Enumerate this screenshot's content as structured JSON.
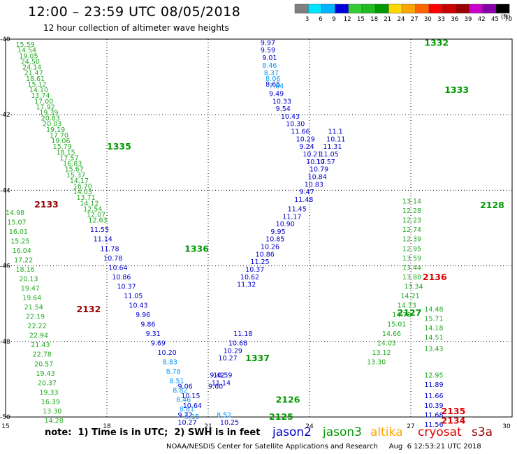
{
  "header": {
    "title": "12:00 – 23:59 UTC 08/05/2018",
    "subtitle": "12 hour collection of altimeter wave heights"
  },
  "color_scale": {
    "unit_label": "(ft)",
    "ticks": [
      "3",
      "6",
      "9",
      "12",
      "15",
      "18",
      "21",
      "24",
      "27",
      "30",
      "33",
      "36",
      "39",
      "42",
      "45",
      "70"
    ],
    "colors": [
      "#7f7f7f",
      "#00e5ff",
      "#00b2ff",
      "#0000dd",
      "#33cc33",
      "#22b922",
      "#009900",
      "#ffd700",
      "#ffa500",
      "#ff6600",
      "#ff0000",
      "#cc0000",
      "#990000",
      "#cc00cc",
      "#8800aa",
      "#000000"
    ]
  },
  "footer": {
    "note": "note:  1) Time is in UTC;  2) SWH is in feet",
    "legend": [
      {
        "label": "jason2",
        "color": "#0000cc"
      },
      {
        "label": "jason3",
        "color": "#009900"
      },
      {
        "label": "altika",
        "color": "#ffa500"
      },
      {
        "label": "cryosat",
        "color": "#dd0000"
      },
      {
        "label": "s3a",
        "color": "#990000"
      }
    ],
    "credit": "NOAA/NESDIS Center for Satellite Applications and Research     Aug  6 12:53:21 UTC 2018"
  },
  "chart_data": {
    "type": "scatter",
    "xlabel": "",
    "ylabel": "",
    "xlim": [
      15,
      30
    ],
    "ylim": [
      -50,
      -40
    ],
    "x_ticks": [
      15,
      18,
      21,
      24,
      27,
      30
    ],
    "y_ticks": [
      -40,
      -42,
      -44,
      -46,
      -48,
      -50
    ],
    "grid": true,
    "series": [
      {
        "name": "jason3",
        "color": "#22aa22",
        "points": [
          {
            "x": 15.3,
            "y": -40.15,
            "v": "15.59"
          },
          {
            "x": 15.35,
            "y": -40.3,
            "v": "14.54"
          },
          {
            "x": 15.4,
            "y": -40.45,
            "v": "19.05"
          },
          {
            "x": 15.45,
            "y": -40.6,
            "v": "24.50"
          },
          {
            "x": 15.5,
            "y": -40.75,
            "v": "24.14"
          },
          {
            "x": 15.55,
            "y": -40.9,
            "v": "21.47"
          },
          {
            "x": 15.6,
            "y": -41.05,
            "v": "18.61"
          },
          {
            "x": 15.65,
            "y": -41.2,
            "v": "15.12"
          },
          {
            "x": 15.7,
            "y": -41.35,
            "v": "14.10"
          },
          {
            "x": 15.75,
            "y": -41.5,
            "v": "13.74"
          },
          {
            "x": 15.85,
            "y": -41.65,
            "v": "17.00"
          },
          {
            "x": 15.9,
            "y": -41.8,
            "v": "17.92"
          },
          {
            "x": 16.0,
            "y": -41.95,
            "v": "19.39"
          },
          {
            "x": 16.05,
            "y": -42.1,
            "v": "20.83"
          },
          {
            "x": 16.1,
            "y": -42.25,
            "v": "20.03"
          },
          {
            "x": 16.2,
            "y": -42.4,
            "v": "19.19"
          },
          {
            "x": 16.3,
            "y": -42.55,
            "v": "17.70"
          },
          {
            "x": 16.35,
            "y": -42.7,
            "v": "19.06"
          },
          {
            "x": 16.4,
            "y": -42.85,
            "v": "15.79"
          },
          {
            "x": 16.5,
            "y": -43.0,
            "v": "18.15"
          },
          {
            "x": 16.6,
            "y": -43.15,
            "v": "17.57"
          },
          {
            "x": 16.7,
            "y": -43.3,
            "v": "16.83"
          },
          {
            "x": 16.75,
            "y": -43.45,
            "v": "15.67"
          },
          {
            "x": 16.8,
            "y": -43.6,
            "v": "15.37"
          },
          {
            "x": 16.9,
            "y": -43.75,
            "v": "14.17"
          },
          {
            "x": 17.0,
            "y": -43.9,
            "v": "16.70"
          },
          {
            "x": 17.0,
            "y": -44.05,
            "v": "14.03"
          },
          {
            "x": 17.1,
            "y": -44.2,
            "v": "13.71"
          },
          {
            "x": 17.2,
            "y": -44.35,
            "v": "14.12"
          },
          {
            "x": 17.3,
            "y": -44.5,
            "v": "12.54"
          },
          {
            "x": 17.4,
            "y": -44.65,
            "v": "12.07"
          },
          {
            "x": 17.45,
            "y": -44.8,
            "v": "12.63"
          },
          {
            "x": 14.9,
            "y": -44.37,
            "v": "14.86"
          },
          {
            "x": 15.0,
            "y": -44.6,
            "v": "14.98"
          },
          {
            "x": 15.05,
            "y": -44.85,
            "v": "15.07"
          },
          {
            "x": 15.1,
            "y": -45.1,
            "v": "16.01"
          },
          {
            "x": 15.15,
            "y": -45.35,
            "v": "15.25"
          },
          {
            "x": 15.2,
            "y": -45.6,
            "v": "16.04"
          },
          {
            "x": 15.25,
            "y": -45.85,
            "v": "17.22"
          },
          {
            "x": 15.3,
            "y": -46.1,
            "v": "18.16"
          },
          {
            "x": 15.4,
            "y": -46.35,
            "v": "20.13"
          },
          {
            "x": 15.45,
            "y": -46.6,
            "v": "19.47"
          },
          {
            "x": 15.5,
            "y": -46.85,
            "v": "19.64"
          },
          {
            "x": 15.55,
            "y": -47.1,
            "v": "21.54"
          },
          {
            "x": 15.6,
            "y": -47.35,
            "v": "22.19"
          },
          {
            "x": 15.65,
            "y": -47.6,
            "v": "22.22"
          },
          {
            "x": 15.7,
            "y": -47.85,
            "v": "22.94"
          },
          {
            "x": 15.75,
            "y": -48.1,
            "v": "21.43"
          },
          {
            "x": 15.8,
            "y": -48.35,
            "v": "22.78"
          },
          {
            "x": 15.85,
            "y": -48.6,
            "v": "20.57"
          },
          {
            "x": 15.9,
            "y": -48.85,
            "v": "19.43"
          },
          {
            "x": 15.95,
            "y": -49.1,
            "v": "20.37"
          },
          {
            "x": 16.0,
            "y": -49.35,
            "v": "19.33"
          },
          {
            "x": 16.05,
            "y": -49.6,
            "v": "16.39"
          },
          {
            "x": 16.1,
            "y": -49.85,
            "v": "13.30"
          },
          {
            "x": 16.15,
            "y": -50.1,
            "v": "14.28"
          },
          {
            "x": 16.2,
            "y": -50.35,
            "v": "12.54"
          },
          {
            "x": 26.75,
            "y": -44.3,
            "v": "13.14"
          },
          {
            "x": 26.75,
            "y": -44.55,
            "v": "12.28"
          },
          {
            "x": 26.75,
            "y": -44.8,
            "v": "12.23"
          },
          {
            "x": 26.75,
            "y": -45.05,
            "v": "12.74"
          },
          {
            "x": 26.75,
            "y": -45.3,
            "v": "12.39"
          },
          {
            "x": 26.75,
            "y": -45.55,
            "v": "12.95"
          },
          {
            "x": 26.75,
            "y": -45.8,
            "v": "13.59"
          },
          {
            "x": 26.75,
            "y": -46.05,
            "v": "13.44"
          },
          {
            "x": 26.75,
            "y": -46.3,
            "v": "13.88"
          },
          {
            "x": 26.8,
            "y": -46.55,
            "v": "13.34"
          },
          {
            "x": 26.7,
            "y": -46.8,
            "v": "14.21"
          },
          {
            "x": 26.6,
            "y": -47.05,
            "v": "14.73"
          },
          {
            "x": 26.45,
            "y": -47.3,
            "v": "14.78"
          },
          {
            "x": 26.3,
            "y": -47.55,
            "v": "15.01"
          },
          {
            "x": 26.15,
            "y": -47.8,
            "v": "14.66"
          },
          {
            "x": 26.0,
            "y": -48.05,
            "v": "14.03"
          },
          {
            "x": 25.85,
            "y": -48.3,
            "v": "13.12"
          },
          {
            "x": 25.7,
            "y": -48.55,
            "v": "13.30"
          },
          {
            "x": 27.4,
            "y": -47.15,
            "v": "14.48"
          },
          {
            "x": 27.4,
            "y": -47.4,
            "v": "15.71"
          },
          {
            "x": 27.4,
            "y": -47.65,
            "v": "14.18"
          },
          {
            "x": 27.4,
            "y": -47.9,
            "v": "14.51"
          },
          {
            "x": 27.4,
            "y": -48.2,
            "v": "13.43"
          },
          {
            "x": 27.4,
            "y": -48.9,
            "v": "12.95"
          }
        ]
      },
      {
        "name": "jason2",
        "color": "#0000cc",
        "points": [
          {
            "x": 17.5,
            "y": -45.05,
            "v": "11.55"
          },
          {
            "x": 17.6,
            "y": -45.3,
            "v": "11.14"
          },
          {
            "x": 17.8,
            "y": -45.55,
            "v": "11.78"
          },
          {
            "x": 17.9,
            "y": -45.8,
            "v": "10.78"
          },
          {
            "x": 18.05,
            "y": -46.05,
            "v": "10.64"
          },
          {
            "x": 18.15,
            "y": -46.3,
            "v": "10.86"
          },
          {
            "x": 18.3,
            "y": -46.55,
            "v": "10.37"
          },
          {
            "x": 18.5,
            "y": -46.8,
            "v": "11.05"
          },
          {
            "x": 18.65,
            "y": -47.05,
            "v": "10.43"
          },
          {
            "x": 18.85,
            "y": -47.3,
            "v": "9.96"
          },
          {
            "x": 19.0,
            "y": -47.55,
            "v": "9.86"
          },
          {
            "x": 19.15,
            "y": -47.8,
            "v": "9.31"
          },
          {
            "x": 19.3,
            "y": -48.05,
            "v": "9.69"
          },
          {
            "x": 19.5,
            "y": -48.3,
            "v": "10.20"
          },
          {
            "x": 20.1,
            "y": -49.2,
            "v": "9.06"
          },
          {
            "x": 20.2,
            "y": -49.45,
            "v": "10.15"
          },
          {
            "x": 20.25,
            "y": -49.7,
            "v": "10.64"
          },
          {
            "x": 20.1,
            "y": -49.95,
            "v": "9.72"
          },
          {
            "x": 20.1,
            "y": -50.15,
            "v": "10.27"
          },
          {
            "x": 21.15,
            "y": -48.9,
            "v": "10.59"
          },
          {
            "x": 21.1,
            "y": -49.1,
            "v": "11.14"
          },
          {
            "x": 21.05,
            "y": -48.9,
            "v": "9.42"
          },
          {
            "x": 21.0,
            "y": -49.2,
            "v": "9.60"
          },
          {
            "x": 21.3,
            "y": -48.45,
            "v": "10.27"
          },
          {
            "x": 21.45,
            "y": -48.25,
            "v": "10.29"
          },
          {
            "x": 21.6,
            "y": -48.05,
            "v": "10.68"
          },
          {
            "x": 21.75,
            "y": -47.8,
            "v": "11.18"
          },
          {
            "x": 21.35,
            "y": -50.15,
            "v": "10.25"
          },
          {
            "x": 22.55,
            "y": -40.1,
            "v": "9.97"
          },
          {
            "x": 22.55,
            "y": -40.3,
            "v": "9.59"
          },
          {
            "x": 22.6,
            "y": -40.5,
            "v": "9.01"
          },
          {
            "x": 22.7,
            "y": -41.2,
            "v": "8.65"
          },
          {
            "x": 22.8,
            "y": -41.45,
            "v": "9.49"
          },
          {
            "x": 22.9,
            "y": -41.65,
            "v": "10.33"
          },
          {
            "x": 23.0,
            "y": -41.85,
            "v": "9.54"
          },
          {
            "x": 23.15,
            "y": -42.05,
            "v": "10.43"
          },
          {
            "x": 23.3,
            "y": -42.25,
            "v": "10.30"
          },
          {
            "x": 23.45,
            "y": -42.45,
            "v": "11.66"
          },
          {
            "x": 23.6,
            "y": -42.65,
            "v": "10.29"
          },
          {
            "x": 23.7,
            "y": -42.85,
            "v": "9.24"
          },
          {
            "x": 23.8,
            "y": -43.05,
            "v": "10.21"
          },
          {
            "x": 23.9,
            "y": -43.25,
            "v": "10.17"
          },
          {
            "x": 24.0,
            "y": -43.45,
            "v": "10.79"
          },
          {
            "x": 24.2,
            "y": -43.25,
            "v": "10.57"
          },
          {
            "x": 24.3,
            "y": -43.05,
            "v": "11.05"
          },
          {
            "x": 24.4,
            "y": -42.85,
            "v": "11.31"
          },
          {
            "x": 24.5,
            "y": -42.65,
            "v": "10.11"
          },
          {
            "x": 24.55,
            "y": -42.45,
            "v": "11.1"
          },
          {
            "x": 23.95,
            "y": -43.65,
            "v": "10.84"
          },
          {
            "x": 23.85,
            "y": -43.85,
            "v": "10.83"
          },
          {
            "x": 23.7,
            "y": -44.05,
            "v": "9.47"
          },
          {
            "x": 23.55,
            "y": -44.25,
            "v": "11.48"
          },
          {
            "x": 23.35,
            "y": -44.5,
            "v": "11.45"
          },
          {
            "x": 23.2,
            "y": -44.7,
            "v": "11.17"
          },
          {
            "x": 23.0,
            "y": -44.9,
            "v": "10.90"
          },
          {
            "x": 22.85,
            "y": -45.1,
            "v": "9.95"
          },
          {
            "x": 22.7,
            "y": -45.3,
            "v": "10.85"
          },
          {
            "x": 22.55,
            "y": -45.5,
            "v": "10.26"
          },
          {
            "x": 22.4,
            "y": -45.7,
            "v": "10.86"
          },
          {
            "x": 22.25,
            "y": -45.9,
            "v": "11.25"
          },
          {
            "x": 22.1,
            "y": -46.1,
            "v": "10.37"
          },
          {
            "x": 21.95,
            "y": -46.3,
            "v": "10.62"
          },
          {
            "x": 21.85,
            "y": -46.5,
            "v": "11.32"
          },
          {
            "x": 27.4,
            "y": -49.15,
            "v": "11.89"
          },
          {
            "x": 27.4,
            "y": -49.45,
            "v": "11.66"
          },
          {
            "x": 27.4,
            "y": -49.7,
            "v": "10.39"
          },
          {
            "x": 27.4,
            "y": -49.95,
            "v": "11.68"
          },
          {
            "x": 27.4,
            "y": -50.2,
            "v": "11.56"
          },
          {
            "x": 27.45,
            "y": -50.4,
            "v": "10.32"
          },
          {
            "x": 27.4,
            "y": -50.6,
            "v": "10.38"
          }
        ]
      },
      {
        "name": "jason2-light",
        "color": "#0099ff",
        "points": [
          {
            "x": 19.65,
            "y": -48.55,
            "v": "8.83"
          },
          {
            "x": 19.75,
            "y": -48.8,
            "v": "8.78"
          },
          {
            "x": 19.85,
            "y": -49.05,
            "v": "8.51"
          },
          {
            "x": 19.95,
            "y": -49.3,
            "v": "8.82"
          },
          {
            "x": 20.05,
            "y": -49.55,
            "v": "8.46"
          },
          {
            "x": 20.15,
            "y": -49.8,
            "v": "8.81"
          },
          {
            "x": 20.3,
            "y": -50.0,
            "v": "9.15"
          },
          {
            "x": 21.25,
            "y": -49.95,
            "v": "8.52"
          },
          {
            "x": 22.6,
            "y": -40.7,
            "v": "8.46"
          },
          {
            "x": 22.65,
            "y": -40.9,
            "v": "8.37"
          },
          {
            "x": 22.7,
            "y": -41.05,
            "v": "8.06"
          },
          {
            "x": 22.8,
            "y": -41.25,
            "v": "7.64"
          }
        ]
      }
    ],
    "track_labels": [
      {
        "text": "1332",
        "x": 27.4,
        "y": -40.1,
        "color": "#009900"
      },
      {
        "text": "1333",
        "x": 28.0,
        "y": -41.35,
        "color": "#009900"
      },
      {
        "text": "1335",
        "x": 18.0,
        "y": -42.85,
        "color": "#009900"
      },
      {
        "text": "1336",
        "x": 20.3,
        "y": -45.55,
        "color": "#009900"
      },
      {
        "text": "1337",
        "x": 22.1,
        "y": -48.45,
        "color": "#009900"
      },
      {
        "text": "2126",
        "x": 23.0,
        "y": -49.55,
        "color": "#009900"
      },
      {
        "text": "2125",
        "x": 22.8,
        "y": -50.0,
        "color": "#009900"
      },
      {
        "text": "2127",
        "x": 26.6,
        "y": -47.25,
        "color": "#009900"
      },
      {
        "text": "2128",
        "x": 29.05,
        "y": -44.4,
        "color": "#009900"
      },
      {
        "text": "2133",
        "x": 15.85,
        "y": -44.38,
        "color": "#990000"
      },
      {
        "text": "2132",
        "x": 17.1,
        "y": -47.15,
        "color": "#990000"
      },
      {
        "text": "2136",
        "x": 27.35,
        "y": -46.3,
        "color": "#dd0000"
      },
      {
        "text": "2135",
        "x": 27.9,
        "y": -49.85,
        "color": "#dd0000"
      },
      {
        "text": "2134",
        "x": 27.9,
        "y": -50.1,
        "color": "#dd0000"
      }
    ]
  }
}
